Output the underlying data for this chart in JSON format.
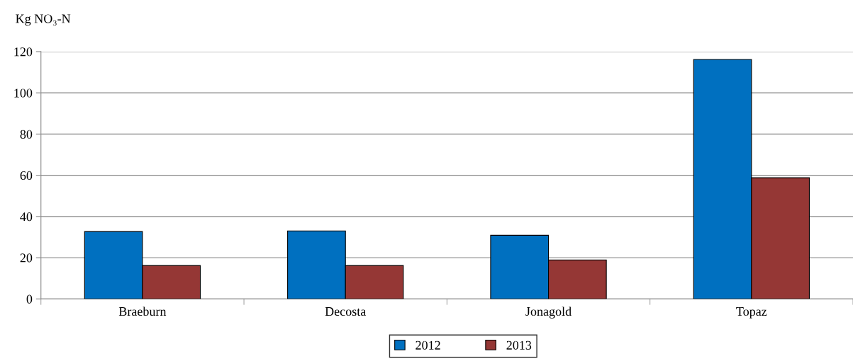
{
  "chart_data": {
    "type": "bar",
    "ylabel": "Kg NO₃-N",
    "categories": [
      "Braeburn",
      "Decosta",
      "Jonagold",
      "Topaz"
    ],
    "series": [
      {
        "name": "2012",
        "color": "#0070c0",
        "values": [
          32.7,
          33.0,
          30.9,
          116.2
        ]
      },
      {
        "name": "2013",
        "color": "#953735",
        "values": [
          16.2,
          16.2,
          18.9,
          58.8
        ]
      }
    ],
    "ylim": [
      0,
      120
    ],
    "yticks": [
      0,
      20,
      40,
      60,
      80,
      100,
      120
    ],
    "grid": "y",
    "legend": "bottom"
  }
}
